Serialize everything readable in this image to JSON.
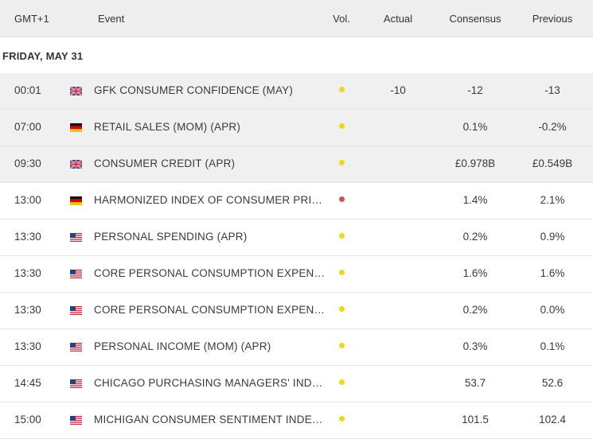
{
  "header": {
    "gmt": "GMT+1",
    "event": "Event",
    "vol": "Vol.",
    "actual": "Actual",
    "consensus": "Consensus",
    "previous": "Previous"
  },
  "date_label": "FRIDAY, MAY 31",
  "colors": {
    "vol_medium": "#f2d51e",
    "vol_high": "#c9545c",
    "header_bg": "#eeeeee",
    "row_shaded_bg": "#f0f0f0"
  },
  "rows": [
    {
      "time": "00:01",
      "country": "uk-flag-icon",
      "event": "GFK CONSUMER CONFIDENCE (MAY)",
      "vol": "medium",
      "actual": "-10",
      "consensus": "-12",
      "previous": "-13"
    },
    {
      "time": "07:00",
      "country": "germany-flag-icon",
      "event": "RETAIL SALES (MOM) (APR)",
      "vol": "medium",
      "actual": "",
      "consensus": "0.1%",
      "previous": "-0.2%"
    },
    {
      "time": "09:30",
      "country": "uk-flag-icon",
      "event": "CONSUMER CREDIT (APR)",
      "vol": "medium",
      "actual": "",
      "consensus": "£0.978B",
      "previous": "£0.549B"
    },
    {
      "time": "13:00",
      "country": "germany-flag-icon",
      "event": "HARMONIZED INDEX OF CONSUMER PRIC...",
      "vol": "high",
      "actual": "",
      "consensus": "1.4%",
      "previous": "2.1%"
    },
    {
      "time": "13:30",
      "country": "us-flag-icon",
      "event": "PERSONAL SPENDING (APR)",
      "vol": "medium",
      "actual": "",
      "consensus": "0.2%",
      "previous": "0.9%"
    },
    {
      "time": "13:30",
      "country": "us-flag-icon",
      "event": "CORE PERSONAL CONSUMPTION EXPEND...",
      "vol": "medium",
      "actual": "",
      "consensus": "1.6%",
      "previous": "1.6%"
    },
    {
      "time": "13:30",
      "country": "us-flag-icon",
      "event": "CORE PERSONAL CONSUMPTION EXPEND...",
      "vol": "medium",
      "actual": "",
      "consensus": "0.2%",
      "previous": "0.0%"
    },
    {
      "time": "13:30",
      "country": "us-flag-icon",
      "event": "PERSONAL INCOME (MOM) (APR)",
      "vol": "medium",
      "actual": "",
      "consensus": "0.3%",
      "previous": "0.1%"
    },
    {
      "time": "14:45",
      "country": "us-flag-icon",
      "event": "CHICAGO PURCHASING MANAGERS' INDE...",
      "vol": "medium",
      "actual": "",
      "consensus": "53.7",
      "previous": "52.6"
    },
    {
      "time": "15:00",
      "country": "us-flag-icon",
      "event": "MICHIGAN CONSUMER SENTIMENT INDEX...",
      "vol": "medium",
      "actual": "",
      "consensus": "101.5",
      "previous": "102.4"
    }
  ]
}
